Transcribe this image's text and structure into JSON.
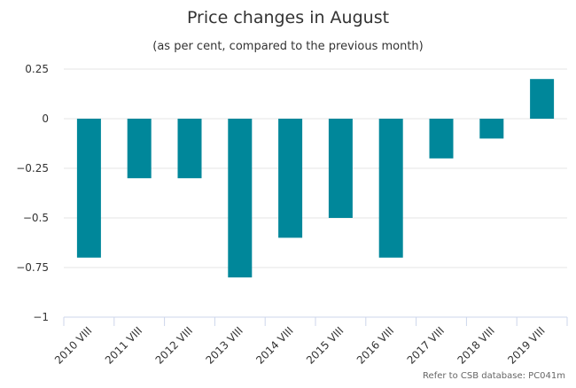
{
  "chart_data": {
    "type": "bar",
    "title": "Price changes in August",
    "subtitle": "(as per cent, compared to the previous month)",
    "categories": [
      "2010 VIII",
      "2011 VIII",
      "2012 VIII",
      "2013 VIII",
      "2014 VIII",
      "2015 VIII",
      "2016 VIII",
      "2017 VIII",
      "2018 VIII",
      "2019 VIII"
    ],
    "values": [
      -0.7,
      -0.3,
      -0.3,
      -0.8,
      -0.6,
      -0.5,
      -0.7,
      -0.2,
      -0.1,
      0.2
    ],
    "yticks": [
      0.25,
      0,
      -0.25,
      -0.5,
      -0.75,
      -1
    ],
    "ytick_labels": [
      "0.25",
      "0",
      "−0.25",
      "−0.5",
      "−0.75",
      "−1"
    ],
    "ylim": [
      -1,
      0.25
    ],
    "bar_color": "#00879a",
    "grid": true,
    "legend": "none",
    "credit": "Refer to CSB database: PC041m"
  }
}
